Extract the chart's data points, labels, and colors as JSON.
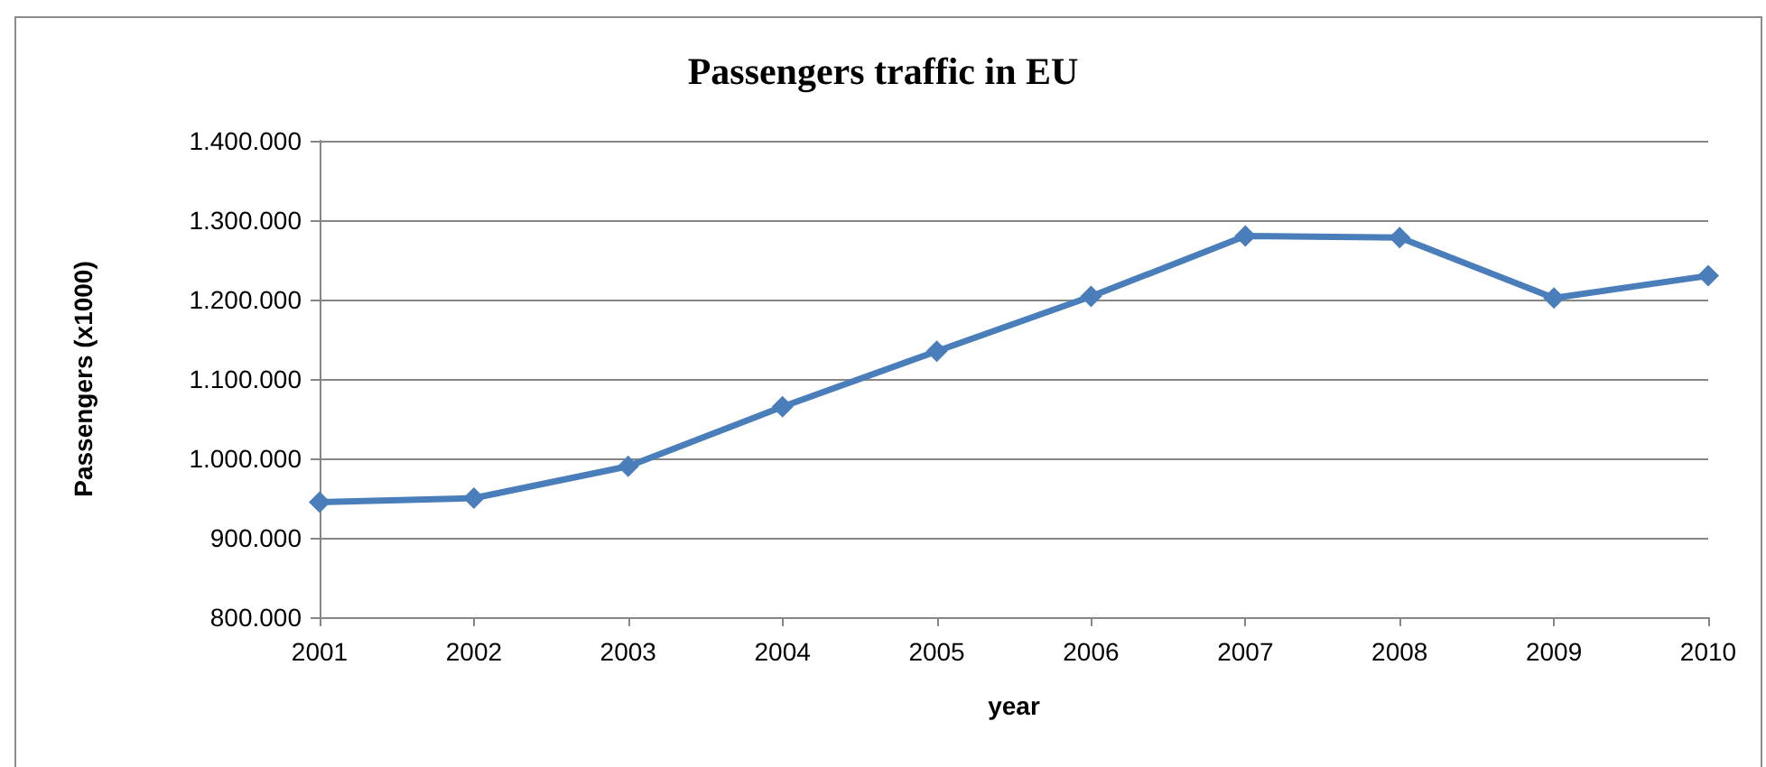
{
  "chart_data": {
    "type": "line",
    "title": "Passengers traffic in EU",
    "xlabel": "year",
    "ylabel": "Passengers (x1000)",
    "categories": [
      "2001",
      "2002",
      "2003",
      "2004",
      "2005",
      "2006",
      "2007",
      "2008",
      "2009",
      "2010"
    ],
    "series": [
      {
        "color": "#4a7ebb",
        "values": [
          945000,
          950000,
          990000,
          1065000,
          1135000,
          1204000,
          1280000,
          1278000,
          1202000,
          1230000
        ]
      }
    ],
    "ylim": [
      800000,
      1400000
    ],
    "yticks": [
      {
        "value": 800000,
        "label": "800.000"
      },
      {
        "value": 900000,
        "label": "900.000"
      },
      {
        "value": 1000000,
        "label": "1.000.000"
      },
      {
        "value": 1100000,
        "label": "1.100.000"
      },
      {
        "value": 1200000,
        "label": "1.200.000"
      },
      {
        "value": 1300000,
        "label": "1.300.000"
      },
      {
        "value": 1400000,
        "label": "1.400.000"
      }
    ],
    "grid": "y",
    "marker": "diamond",
    "line_style": "solid"
  }
}
